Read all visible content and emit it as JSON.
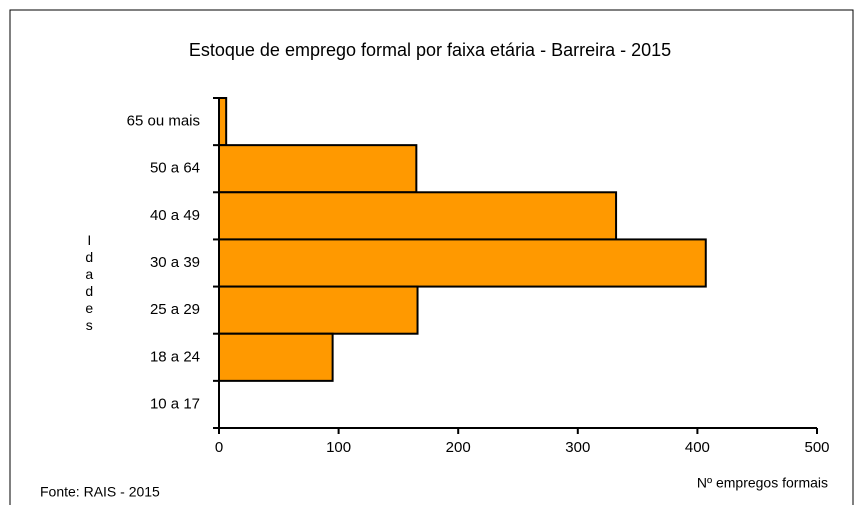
{
  "chart_data": {
    "type": "hbar",
    "title": "Estoque de emprego formal por faixa etária - Barreira - 2015",
    "y_label": "Idades",
    "x_label": "Nº empregos formais",
    "source": "Fonte: RAIS - 2015",
    "categories": [
      "65 ou mais",
      "50 a 64",
      "40 a 49",
      "30 a 39",
      "25 a 29",
      "18 a 24",
      "10 a 17"
    ],
    "values": [
      6,
      165,
      332,
      407,
      166,
      95,
      0
    ],
    "color": "#ff9900",
    "xlim": [
      0,
      500
    ],
    "xticks": [
      0,
      100,
      200,
      300,
      400,
      500
    ],
    "grid": false
  }
}
